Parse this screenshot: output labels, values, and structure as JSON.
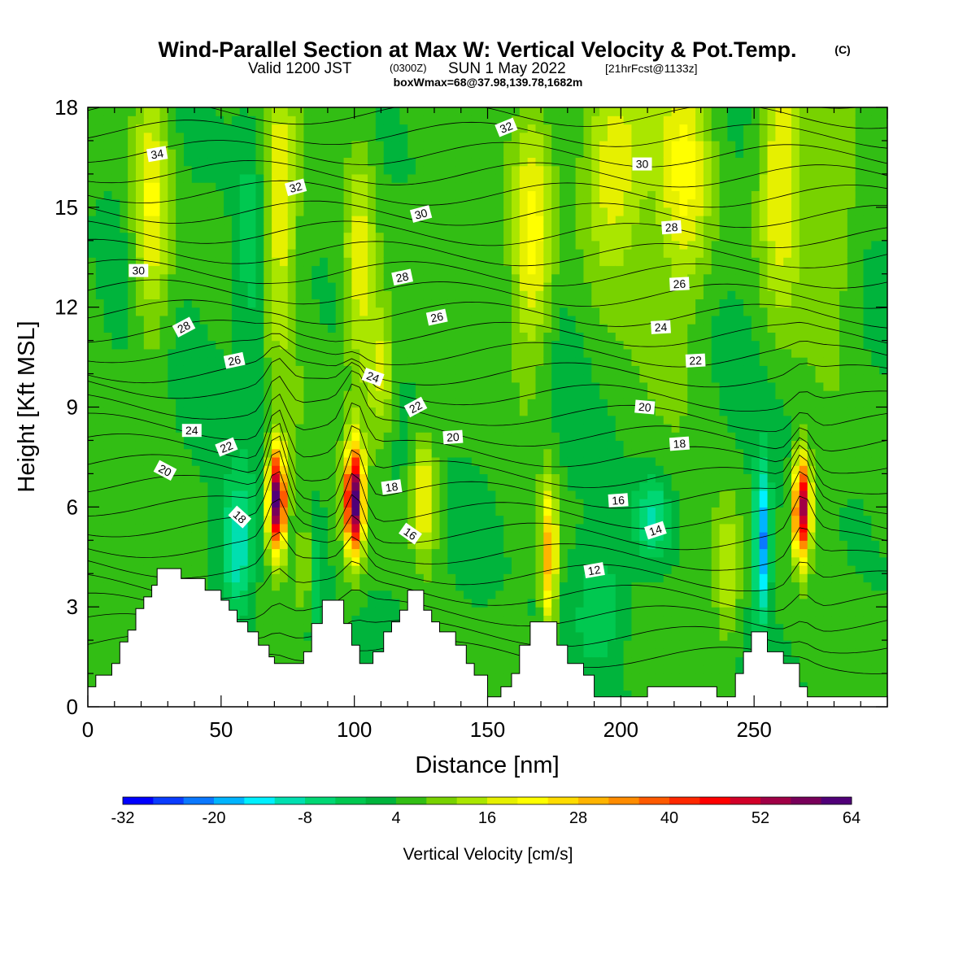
{
  "header": {
    "title": "Wind-Parallel Section at Max W: Vertical Velocity & Pot.Temp.",
    "copyright": "(C)",
    "valid_prefix": "Valid 1200 JST",
    "valid_utc": "(0300Z)",
    "valid_suffix": "SUN 1 May 2022",
    "forecast_info": "[21hrFcst@1133z]",
    "box_info": "boxWmax=68@37.98,139.78,1682m"
  },
  "chart_data": {
    "type": "heatmap",
    "xlabel": "Distance [nm]",
    "ylabel": "Height [Kft MSL]",
    "xlim": [
      0,
      300
    ],
    "ylim": [
      0,
      18
    ],
    "x_ticks": [
      0,
      50,
      100,
      150,
      200,
      250
    ],
    "y_ticks": [
      0,
      3,
      6,
      9,
      12,
      15,
      18
    ],
    "colorbar": {
      "label": "Vertical Velocity [cm/s]",
      "min": -32,
      "step": 4,
      "tick_labels": [
        "-32",
        "-20",
        "-8",
        "4",
        "16",
        "28",
        "40",
        "52",
        "64"
      ],
      "colors": [
        "#0000ff",
        "#0a3cff",
        "#0a78ff",
        "#00b4ff",
        "#00f0ff",
        "#00dfb0",
        "#00d774",
        "#00c850",
        "#00b43c",
        "#32be14",
        "#78d200",
        "#aae600",
        "#e6f000",
        "#ffff00",
        "#ffdc00",
        "#ffb400",
        "#ff8c00",
        "#ff5a00",
        "#ff2800",
        "#ff0000",
        "#d20028",
        "#a00046",
        "#78005a",
        "#500078"
      ]
    },
    "terrain": [
      [
        0,
        0.6
      ],
      [
        3,
        0.6
      ],
      [
        3,
        0.95
      ],
      [
        9,
        0.95
      ],
      [
        9,
        1.3
      ],
      [
        12,
        1.3
      ],
      [
        12,
        1.95
      ],
      [
        15,
        1.95
      ],
      [
        15,
        2.3
      ],
      [
        18,
        2.3
      ],
      [
        18,
        2.95
      ],
      [
        21,
        2.95
      ],
      [
        21,
        3.3
      ],
      [
        24,
        3.3
      ],
      [
        24,
        3.65
      ],
      [
        26,
        3.65
      ],
      [
        26,
        4.15
      ],
      [
        35,
        4.15
      ],
      [
        35,
        3.85
      ],
      [
        44,
        3.85
      ],
      [
        44,
        3.5
      ],
      [
        50,
        3.5
      ],
      [
        50,
        3.2
      ],
      [
        53,
        3.2
      ],
      [
        53,
        2.9
      ],
      [
        56,
        2.9
      ],
      [
        56,
        2.55
      ],
      [
        60,
        2.55
      ],
      [
        60,
        2.25
      ],
      [
        64,
        2.25
      ],
      [
        64,
        1.85
      ],
      [
        68,
        1.85
      ],
      [
        68,
        1.5
      ],
      [
        70,
        1.5
      ],
      [
        70,
        1.3
      ],
      [
        81,
        1.3
      ],
      [
        81,
        1.65
      ],
      [
        84,
        1.65
      ],
      [
        84,
        2.5
      ],
      [
        88,
        2.5
      ],
      [
        88,
        3.2
      ],
      [
        96,
        3.2
      ],
      [
        96,
        2.5
      ],
      [
        99,
        2.5
      ],
      [
        99,
        1.85
      ],
      [
        102,
        1.85
      ],
      [
        102,
        1.3
      ],
      [
        107,
        1.3
      ],
      [
        107,
        1.65
      ],
      [
        111,
        1.65
      ],
      [
        111,
        2.25
      ],
      [
        114,
        2.25
      ],
      [
        114,
        2.55
      ],
      [
        117,
        2.55
      ],
      [
        117,
        2.9
      ],
      [
        120,
        2.9
      ],
      [
        120,
        3.5
      ],
      [
        126,
        3.5
      ],
      [
        126,
        2.9
      ],
      [
        129,
        2.9
      ],
      [
        129,
        2.55
      ],
      [
        132,
        2.55
      ],
      [
        132,
        2.25
      ],
      [
        138,
        2.25
      ],
      [
        138,
        1.85
      ],
      [
        142,
        1.85
      ],
      [
        142,
        1.3
      ],
      [
        145,
        1.3
      ],
      [
        145,
        0.95
      ],
      [
        150,
        0.95
      ],
      [
        150,
        0.3
      ],
      [
        155,
        0.3
      ],
      [
        155,
        0.6
      ],
      [
        159,
        0.6
      ],
      [
        159,
        1.0
      ],
      [
        162,
        1.0
      ],
      [
        162,
        1.85
      ],
      [
        166,
        1.85
      ],
      [
        166,
        2.55
      ],
      [
        176,
        2.55
      ],
      [
        176,
        1.85
      ],
      [
        180,
        1.85
      ],
      [
        180,
        1.3
      ],
      [
        186,
        1.3
      ],
      [
        186,
        0.95
      ],
      [
        190,
        0.95
      ],
      [
        190,
        0.3
      ],
      [
        210,
        0.3
      ],
      [
        210,
        0.6
      ],
      [
        236,
        0.6
      ],
      [
        236,
        0.3
      ],
      [
        243,
        0.3
      ],
      [
        243,
        1.0
      ],
      [
        246,
        1.0
      ],
      [
        246,
        1.65
      ],
      [
        249,
        1.65
      ],
      [
        249,
        2.25
      ],
      [
        255,
        2.25
      ],
      [
        255,
        1.65
      ],
      [
        261,
        1.65
      ],
      [
        261,
        1.3
      ],
      [
        267,
        1.3
      ],
      [
        267,
        0.6
      ],
      [
        270,
        0.6
      ],
      [
        270,
        0.3
      ],
      [
        300,
        0.3
      ]
    ],
    "isentrope_labels": [
      {
        "x": 26,
        "y": 16.6,
        "text": "34",
        "angle": -10
      },
      {
        "x": 157,
        "y": 17.4,
        "text": "32",
        "angle": -22
      },
      {
        "x": 208,
        "y": 16.3,
        "text": "30",
        "angle": 0
      },
      {
        "x": 78,
        "y": 15.6,
        "text": "32",
        "angle": -15
      },
      {
        "x": 125,
        "y": 14.8,
        "text": "30",
        "angle": -15
      },
      {
        "x": 219,
        "y": 14.4,
        "text": "28",
        "angle": -4
      },
      {
        "x": 19,
        "y": 13.1,
        "text": "30",
        "angle": 0
      },
      {
        "x": 118,
        "y": 12.9,
        "text": "28",
        "angle": -12
      },
      {
        "x": 222,
        "y": 12.7,
        "text": "26",
        "angle": -3
      },
      {
        "x": 36,
        "y": 11.4,
        "text": "28",
        "angle": -28
      },
      {
        "x": 131,
        "y": 11.7,
        "text": "26",
        "angle": -12
      },
      {
        "x": 215,
        "y": 11.4,
        "text": "24",
        "angle": -3
      },
      {
        "x": 55,
        "y": 10.4,
        "text": "26",
        "angle": -12
      },
      {
        "x": 228,
        "y": 10.4,
        "text": "22",
        "angle": -3
      },
      {
        "x": 107,
        "y": 9.9,
        "text": "24",
        "angle": 20
      },
      {
        "x": 123,
        "y": 9.0,
        "text": "22",
        "angle": -28
      },
      {
        "x": 209,
        "y": 9.0,
        "text": "20",
        "angle": 5
      },
      {
        "x": 39,
        "y": 8.3,
        "text": "24",
        "angle": 0
      },
      {
        "x": 52,
        "y": 7.8,
        "text": "22",
        "angle": -22
      },
      {
        "x": 137,
        "y": 8.1,
        "text": "20",
        "angle": -4
      },
      {
        "x": 222,
        "y": 7.9,
        "text": "18",
        "angle": -4
      },
      {
        "x": 29,
        "y": 7.1,
        "text": "20",
        "angle": 28
      },
      {
        "x": 114,
        "y": 6.6,
        "text": "18",
        "angle": -8
      },
      {
        "x": 199,
        "y": 6.2,
        "text": "16",
        "angle": -4
      },
      {
        "x": 57,
        "y": 5.7,
        "text": "18",
        "angle": 42
      },
      {
        "x": 121,
        "y": 5.2,
        "text": "16",
        "angle": 35
      },
      {
        "x": 213,
        "y": 5.3,
        "text": "14",
        "angle": -18
      },
      {
        "x": 190,
        "y": 4.1,
        "text": "12",
        "angle": -10
      }
    ]
  }
}
